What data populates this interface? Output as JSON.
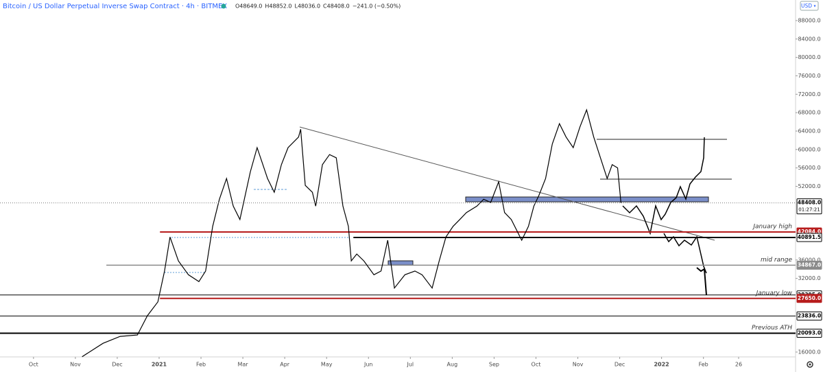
{
  "chart_data": {
    "type": "line",
    "title": "Bitcoin / US Dollar Perpetual Inverse Swap Contract · 4h · BITMEX",
    "ohlc": [
      "O48649.0",
      "H48852.0",
      "L48036.0",
      "C48408.0",
      "−241.0 (−0.50%)"
    ],
    "currency": "USD",
    "x": [
      1.16,
      1.66,
      2.07,
      2.48,
      2.72,
      2.97,
      3.13,
      3.26,
      3.46,
      3.7,
      3.95,
      4.11,
      4.28,
      4.44,
      4.61,
      4.77,
      4.93,
      5.18,
      5.34,
      5.59,
      5.75,
      5.92,
      6.08,
      6.33,
      6.38,
      6.49,
      6.66,
      6.74,
      6.9,
      7.07,
      7.23,
      7.39,
      7.52,
      7.59,
      7.72,
      7.89,
      8.13,
      8.3,
      8.46,
      8.62,
      8.87,
      9.11,
      9.28,
      9.52,
      9.69,
      9.85,
      10.02,
      10.18,
      10.34,
      10.59,
      10.75,
      10.92,
      11.11,
      11.25,
      11.41,
      11.66,
      11.82,
      11.95,
      12.07,
      12.23,
      12.39,
      12.56,
      12.72,
      12.89,
      13.05,
      13.21,
      13.38,
      13.54,
      13.7,
      13.82,
      13.95,
      14.03
    ],
    "series": [
      {
        "color": "#000000",
        "values": [
          15000,
          17900,
          19400,
          19700,
          23900,
          26900,
          33600,
          41000,
          35800,
          32800,
          31300,
          33600,
          43300,
          49200,
          53700,
          47700,
          44800,
          55200,
          60400,
          53700,
          50700,
          56700,
          60400,
          62700,
          64400,
          52200,
          50700,
          47700,
          56700,
          58900,
          58200,
          47700,
          43300,
          35800,
          37300,
          35800,
          32800,
          33600,
          40300,
          29900,
          32800,
          33600,
          32800,
          29900,
          35800,
          41000,
          43300,
          44800,
          46300,
          47700,
          49200,
          48500,
          53000,
          46300,
          44800,
          40300,
          43300,
          47700,
          50000,
          53700,
          61200,
          65600,
          62700,
          60400,
          64900,
          68600,
          62700,
          58200,
          53700,
          56700,
          56000,
          48408
        ]
      }
    ],
    "ylim": [
      14950,
      92470
    ],
    "yticks": [
      {
        "value": 16000,
        "label": "16000.0"
      },
      {
        "value": 32000,
        "label": "32000.0"
      },
      {
        "value": 36000,
        "label": "36000.0"
      },
      {
        "value": 52000,
        "label": "52000.0"
      },
      {
        "value": 56000,
        "label": "56000.0"
      },
      {
        "value": 60000,
        "label": "60000.0"
      },
      {
        "value": 64000,
        "label": "64000.0"
      },
      {
        "value": 68000,
        "label": "68000.0"
      },
      {
        "value": 72000,
        "label": "72000.0"
      },
      {
        "value": 76000,
        "label": "76000.0"
      },
      {
        "value": 80000,
        "label": "80000.0"
      },
      {
        "value": 84000,
        "label": "84000.0"
      },
      {
        "value": 88000,
        "label": "88000.0"
      }
    ],
    "xlim": [
      -0.8,
      18.2
    ],
    "xticks": [
      {
        "value": 0,
        "label": "Oct"
      },
      {
        "value": 1,
        "label": "Nov"
      },
      {
        "value": 2,
        "label": "Dec"
      },
      {
        "value": 3,
        "label": "2021"
      },
      {
        "value": 4,
        "label": "Feb"
      },
      {
        "value": 5,
        "label": "Mar"
      },
      {
        "value": 6,
        "label": "Apr"
      },
      {
        "value": 7,
        "label": "May"
      },
      {
        "value": 8,
        "label": "Jun"
      },
      {
        "value": 9,
        "label": "Jul"
      },
      {
        "value": 10,
        "label": "Aug"
      },
      {
        "value": 11,
        "label": "Sep"
      },
      {
        "value": 12,
        "label": "Oct"
      },
      {
        "value": 13,
        "label": "Nov"
      },
      {
        "value": 14,
        "label": "Dec"
      },
      {
        "value": 15,
        "label": "2022"
      },
      {
        "value": 16,
        "label": "Feb"
      },
      {
        "value": 16.84,
        "label": "26"
      }
    ],
    "last_price": {
      "value": 48408,
      "label": "48408.0"
    },
    "countdown": "01:27:21",
    "levels": [
      {
        "value": 42084,
        "label": "42084.0",
        "color": "#b71c1c",
        "x_start": 3.02,
        "annotation": "January high"
      },
      {
        "value": 40891.5,
        "label": "40891.5",
        "color": "#000000",
        "x_start": 7.64
      },
      {
        "value": 34867,
        "label": "34867.0",
        "color": "#8a8a8a",
        "x_start": 1.74,
        "annotation": "mid range"
      },
      {
        "value": 28395,
        "label": "28395.0",
        "color": "#000000",
        "x_start": -0.8
      },
      {
        "value": 27650,
        "label": "27650.0",
        "color": "#b71c1c",
        "x_start": 3.02,
        "annotation": "January low"
      },
      {
        "value": 23836,
        "label": "23836.0",
        "color": "#000000",
        "x_start": -0.8
      },
      {
        "value": 20093,
        "label": "20093.0",
        "color": "#000000",
        "x_start": -0.8,
        "annotation": "Previous ATH"
      }
    ]
  }
}
